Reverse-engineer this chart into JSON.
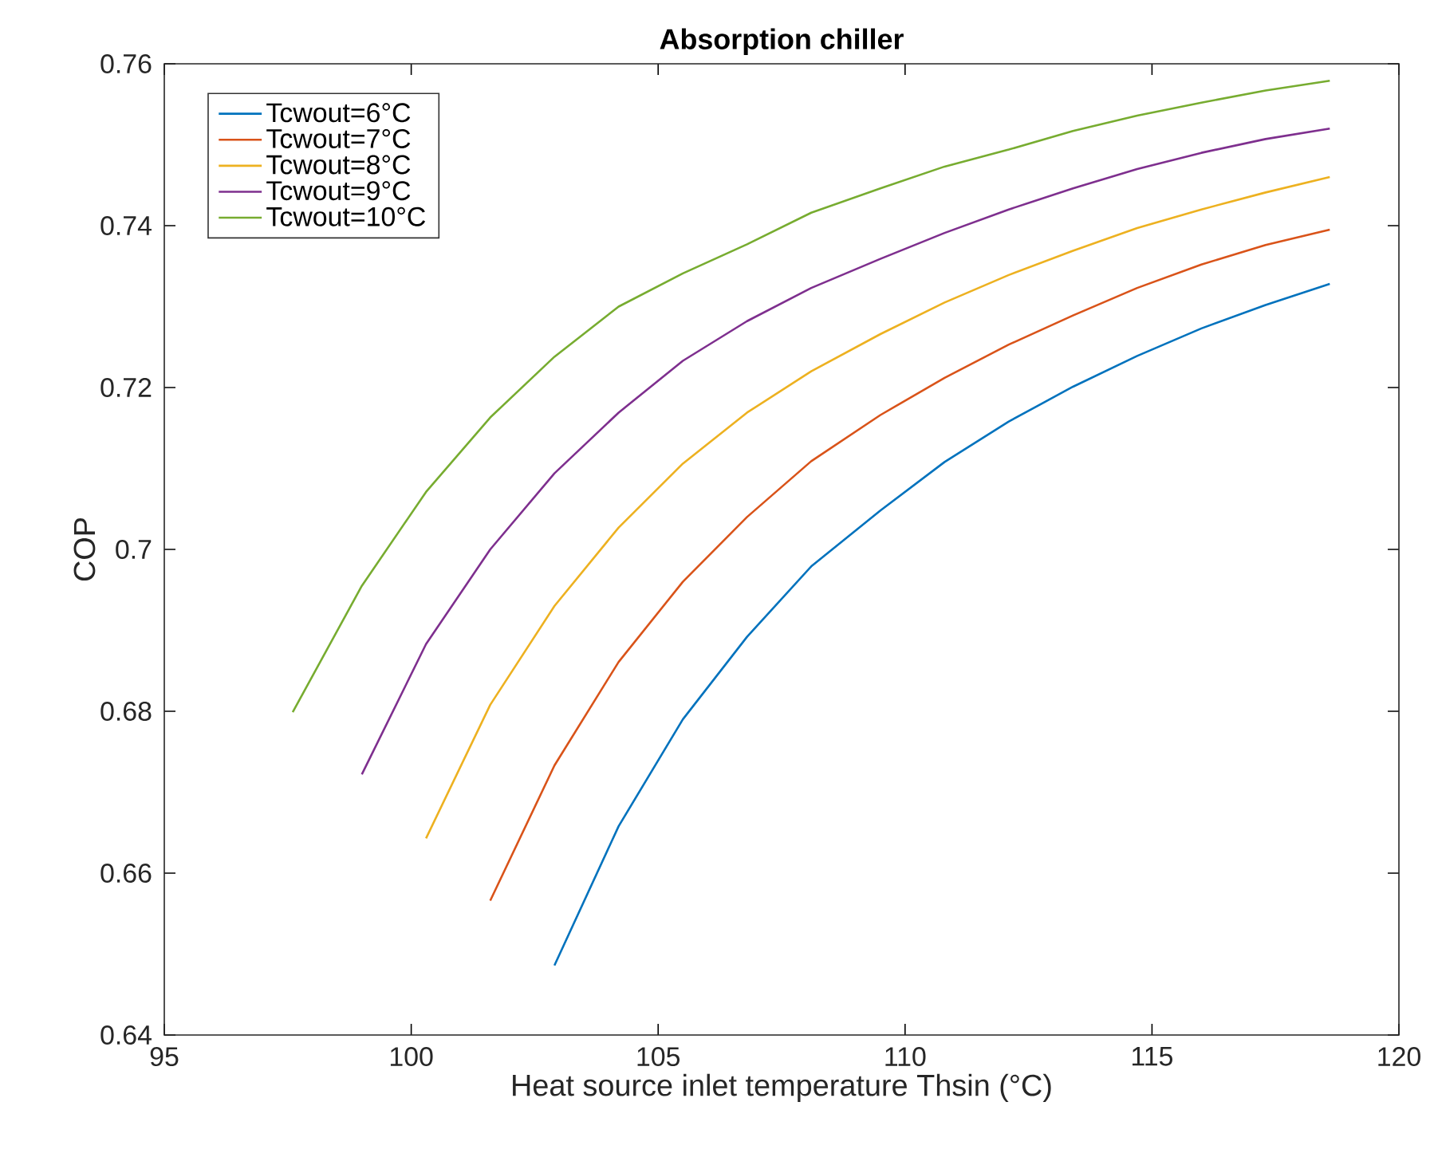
{
  "chart_data": {
    "type": "line",
    "title": "Absorption chiller",
    "xlabel": "Heat source inlet temperature Thsin (°C)",
    "ylabel": "COP",
    "xlim": [
      95,
      120
    ],
    "xticks": [
      95,
      100,
      105,
      110,
      115,
      120
    ],
    "ylim": [
      0.64,
      0.76
    ],
    "yticks": [
      0.64,
      0.66,
      0.68,
      0.7,
      0.72,
      0.74,
      0.76
    ],
    "legend": "top left",
    "grid": false,
    "marker": "none",
    "line_style": "solid",
    "series": [
      {
        "name": "Tcwout=6°C",
        "color": "#0072bd",
        "x": [
          102.9,
          104.2,
          105.5,
          106.8,
          108.1,
          109.5,
          110.8,
          112.1,
          113.4,
          114.7,
          116.0,
          117.3,
          118.6
        ],
        "values": [
          0.6486,
          0.6658,
          0.679,
          0.6892,
          0.6979,
          0.7048,
          0.7108,
          0.7158,
          0.7201,
          0.7239,
          0.7273,
          0.7302,
          0.7328
        ]
      },
      {
        "name": "Tcwout=7°C",
        "color": "#d95319",
        "x": [
          101.6,
          102.9,
          104.2,
          105.5,
          106.8,
          108.1,
          109.5,
          110.8,
          112.1,
          113.4,
          114.7,
          116.0,
          117.3,
          118.6
        ],
        "values": [
          0.6566,
          0.6733,
          0.6861,
          0.696,
          0.704,
          0.7109,
          0.7166,
          0.7212,
          0.7253,
          0.7289,
          0.7323,
          0.7352,
          0.7376,
          0.7395
        ]
      },
      {
        "name": "Tcwout=8°C",
        "color": "#edb120",
        "x": [
          100.3,
          101.6,
          102.9,
          104.2,
          105.5,
          106.8,
          108.1,
          109.5,
          110.8,
          112.1,
          113.4,
          114.7,
          116.0,
          117.3,
          118.6
        ],
        "values": [
          0.6643,
          0.6808,
          0.693,
          0.7027,
          0.7106,
          0.7169,
          0.722,
          0.7266,
          0.7305,
          0.7339,
          0.7369,
          0.7397,
          0.742,
          0.7441,
          0.746
        ]
      },
      {
        "name": "Tcwout=9°C",
        "color": "#7e2f8e",
        "x": [
          99.0,
          100.3,
          101.6,
          102.9,
          104.2,
          105.5,
          106.8,
          108.1,
          109.5,
          110.8,
          112.1,
          113.4,
          114.7,
          116.0,
          117.3,
          118.6
        ],
        "values": [
          0.6722,
          0.6883,
          0.7,
          0.7094,
          0.7169,
          0.7233,
          0.7282,
          0.7323,
          0.7359,
          0.7391,
          0.742,
          0.7446,
          0.747,
          0.749,
          0.7507,
          0.752
        ]
      },
      {
        "name": "Tcwout=10°C",
        "color": "#77ac30",
        "x": [
          97.6,
          99.0,
          100.3,
          101.6,
          102.9,
          104.2,
          105.5,
          106.8,
          108.1,
          109.5,
          110.8,
          112.1,
          113.4,
          114.7,
          116.0,
          117.3,
          118.6
        ],
        "values": [
          0.6799,
          0.6955,
          0.7071,
          0.7163,
          0.7238,
          0.73,
          0.7341,
          0.7377,
          0.7416,
          0.7446,
          0.7473,
          0.7494,
          0.7517,
          0.7536,
          0.7552,
          0.7567,
          0.7579
        ]
      }
    ]
  }
}
